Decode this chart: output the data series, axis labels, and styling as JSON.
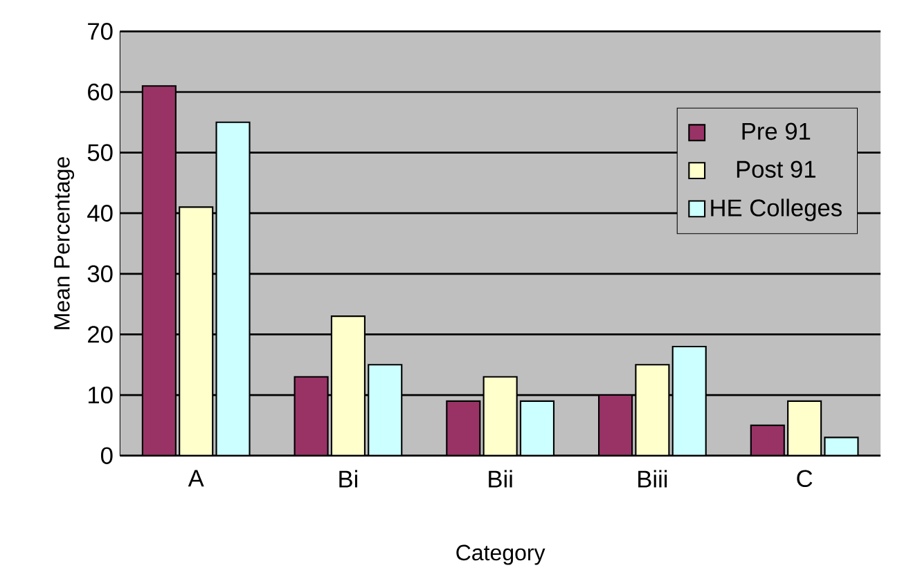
{
  "chart_data": {
    "type": "bar",
    "xlabel": "Category",
    "ylabel": "Mean Percentage",
    "categories": [
      "A",
      "Bi",
      "Bii",
      "Biii",
      "C"
    ],
    "series": [
      {
        "name": "Pre 91",
        "color": "#993366",
        "values": [
          61,
          13,
          9,
          10,
          5
        ]
      },
      {
        "name": "Post 91",
        "color": "#ffffcc",
        "values": [
          41,
          23,
          13,
          15,
          9
        ]
      },
      {
        "name": "HE Colleges",
        "color": "#ccffff",
        "values": [
          55,
          15,
          9,
          18,
          3
        ]
      }
    ],
    "ylim": [
      0,
      70
    ],
    "yticks": [
      0,
      10,
      20,
      30,
      40,
      50,
      60,
      70
    ],
    "grid": "y",
    "legend": "top right"
  }
}
